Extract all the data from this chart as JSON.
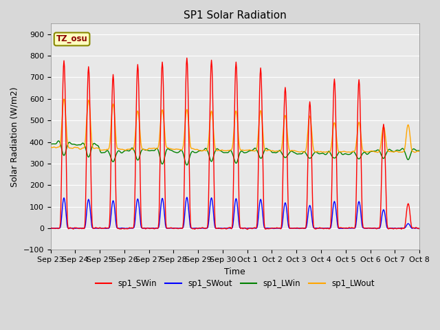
{
  "title": "SP1 Solar Radiation",
  "ylabel": "Solar Radiation (W/m2)",
  "xlabel": "Time",
  "ylim": [
    -100,
    950
  ],
  "yticks": [
    -100,
    0,
    100,
    200,
    300,
    400,
    500,
    600,
    700,
    800,
    900
  ],
  "fig_width": 6.4,
  "fig_height": 4.8,
  "dpi": 100,
  "bg_color": "#d8d8d8",
  "plot_bg_color": "#e8e8e8",
  "grid_color": "white",
  "title_fontsize": 11,
  "label_fontsize": 9,
  "tick_fontsize": 8,
  "legend_entries": [
    "sp1_SWin",
    "sp1_SWout",
    "sp1_LWin",
    "sp1_LWout"
  ],
  "legend_colors": [
    "red",
    "blue",
    "green",
    "orange"
  ],
  "tz_label": "TZ_osu",
  "day_sw_peaks": [
    810,
    775,
    740,
    790,
    800,
    820,
    810,
    800,
    770,
    680,
    610,
    720,
    720,
    500,
    120
  ],
  "lwin_base": [
    390,
    385,
    350,
    360,
    360,
    350,
    360,
    350,
    360,
    350,
    345,
    345,
    345,
    355,
    360
  ],
  "lwout_base": [
    375,
    370,
    365,
    365,
    370,
    365,
    360,
    360,
    360,
    358,
    355,
    355,
    355,
    355,
    355
  ],
  "lwout_peak": [
    620,
    610,
    595,
    560,
    565,
    565,
    560,
    560,
    560,
    540,
    535,
    500,
    500,
    480,
    490
  ],
  "lwin_dip": [
    330,
    325,
    300,
    310,
    290,
    285,
    305,
    295,
    320,
    325,
    320,
    320,
    320,
    320,
    310
  ]
}
